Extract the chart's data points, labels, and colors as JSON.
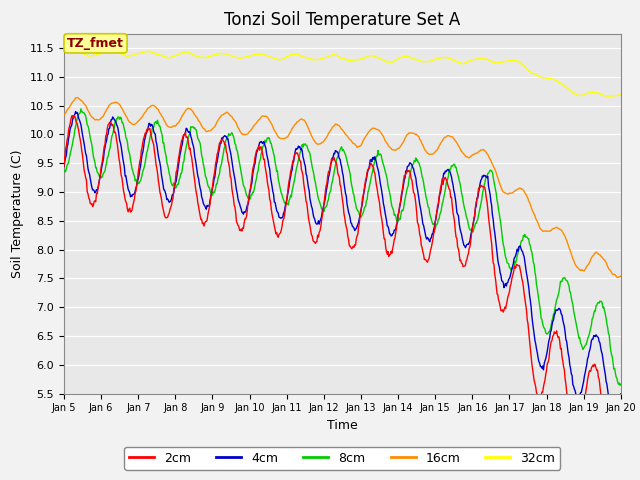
{
  "title": "Tonzi Soil Temperature Set A",
  "xlabel": "Time",
  "ylabel": "Soil Temperature (C)",
  "ylim": [
    5.5,
    11.75
  ],
  "xlim": [
    0,
    360
  ],
  "annotation_text": "TZ_fmet",
  "annotation_color": "#8B0000",
  "annotation_bg": "#FFFF99",
  "annotation_border": "#CCCC00",
  "colors": {
    "2cm": "#FF0000",
    "4cm": "#0000CC",
    "8cm": "#00CC00",
    "16cm": "#FF8C00",
    "32cm": "#FFFF00"
  },
  "legend_labels": [
    "2cm",
    "4cm",
    "8cm",
    "16cm",
    "32cm"
  ],
  "tick_labels": [
    "Jan 5",
    "Jan 6",
    "Jan 7",
    "Jan 8",
    "Jan 9",
    "Jan 10",
    "Jan 11",
    "Jan 12",
    "Jan 13",
    "Jan 14",
    "Jan 15",
    "Jan 16",
    "Jan 17",
    "Jan 18",
    "Jan 19",
    "Jan 20"
  ],
  "tick_positions": [
    0,
    24,
    48,
    72,
    96,
    120,
    144,
    168,
    192,
    216,
    240,
    264,
    288,
    312,
    336,
    360
  ],
  "plot_bg": "#E8E8E8",
  "title_fontsize": 12,
  "axis_fontsize": 9,
  "legend_fontsize": 9,
  "yticks": [
    5.5,
    6.0,
    6.5,
    7.0,
    7.5,
    8.0,
    8.5,
    9.0,
    9.5,
    10.0,
    10.5,
    11.0,
    11.5
  ]
}
